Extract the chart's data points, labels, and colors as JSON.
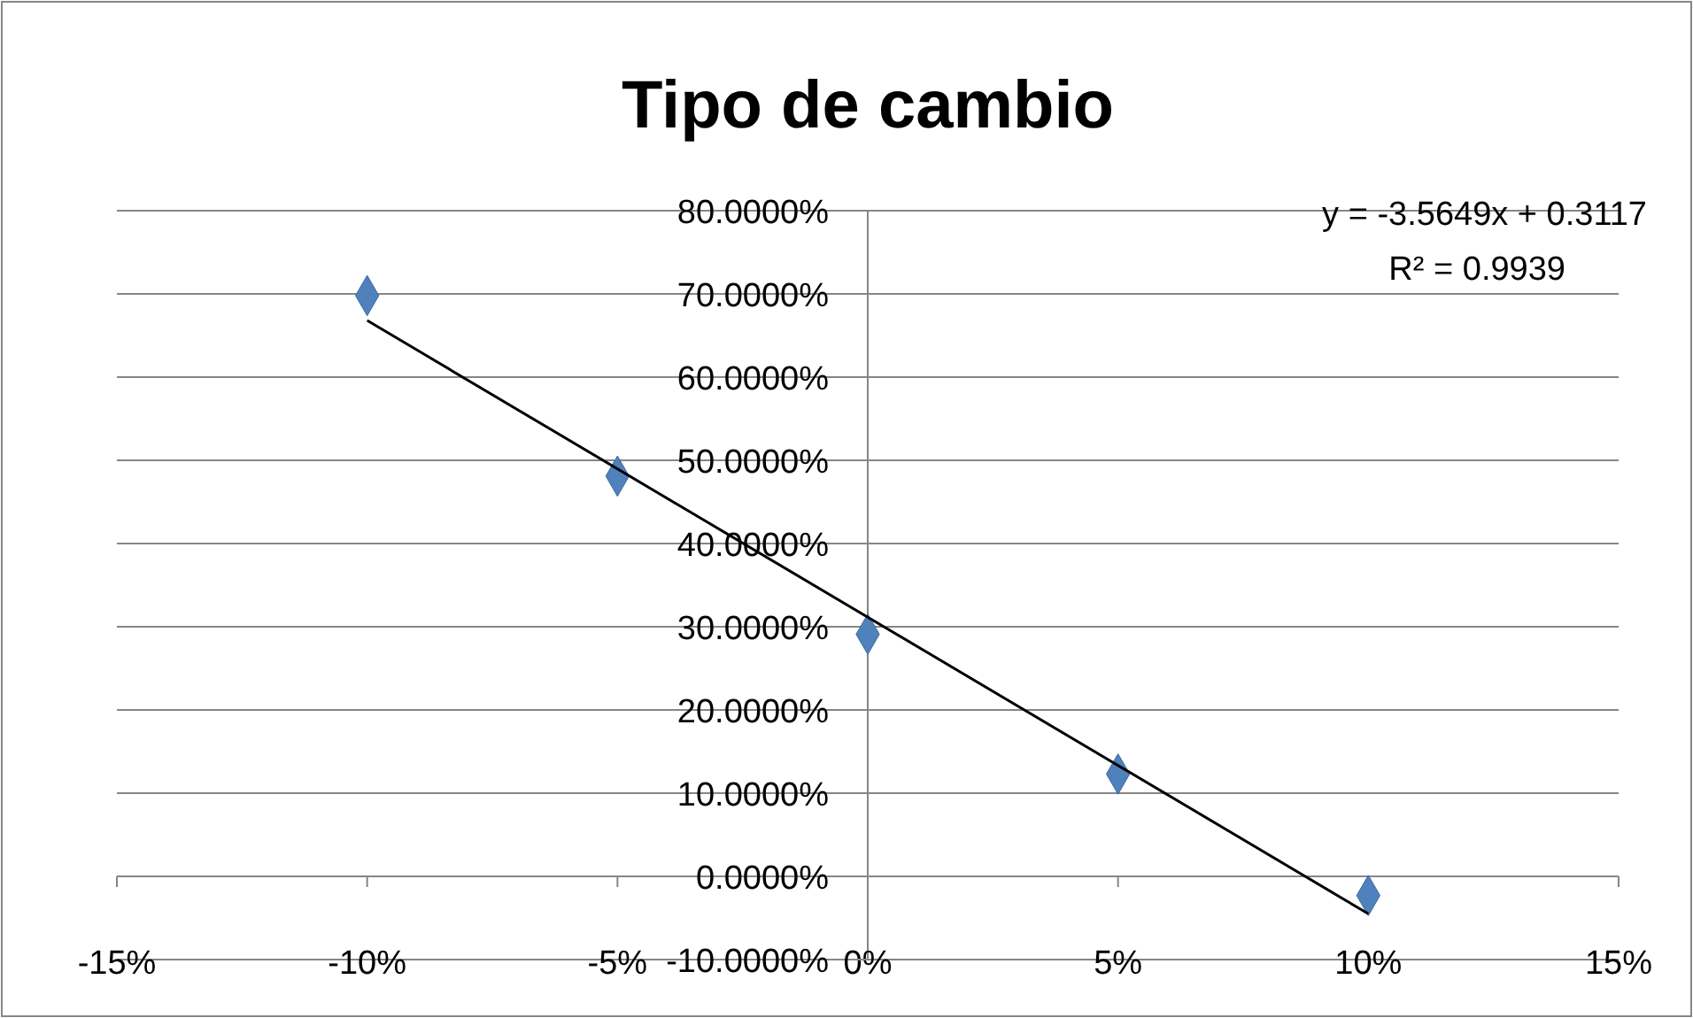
{
  "chart_data": {
    "type": "scatter",
    "title": "Tipo de cambio",
    "marker": "diamond",
    "grid": "y",
    "xlim": [
      -15,
      15
    ],
    "xticks": [
      {
        "value": -15,
        "label": "-15%"
      },
      {
        "value": -10,
        "label": "-10%"
      },
      {
        "value": -5,
        "label": "-5%"
      },
      {
        "value": 0,
        "label": "0%"
      },
      {
        "value": 5,
        "label": "5%"
      },
      {
        "value": 10,
        "label": "10%"
      },
      {
        "value": 15,
        "label": "15%"
      }
    ],
    "ylim": [
      -10,
      80
    ],
    "yticks": [
      {
        "value": -10,
        "label": "-10.0000%"
      },
      {
        "value": 0,
        "label": "0.0000%"
      },
      {
        "value": 10,
        "label": "10.0000%"
      },
      {
        "value": 20,
        "label": "20.0000%"
      },
      {
        "value": 30,
        "label": "30.0000%"
      },
      {
        "value": 40,
        "label": "40.0000%"
      },
      {
        "value": 50,
        "label": "50.0000%"
      },
      {
        "value": 60,
        "label": "60.0000%"
      },
      {
        "value": 70,
        "label": "70.0000%"
      },
      {
        "value": 80,
        "label": "80.0000%"
      }
    ],
    "annotations": [
      "y = -3.5649x + 0.3117",
      "R² = 0.9939"
    ],
    "series": [
      {
        "color": "#4f81bd",
        "x": [
          -10,
          -5,
          0,
          5,
          10
        ],
        "values": [
          69.8,
          48.1,
          29.1,
          12.3,
          -2.3
        ]
      },
      {
        "type": "line",
        "color": "#000000",
        "marker": "none",
        "x": [
          -10,
          10
        ],
        "values": [
          66.8,
          -4.5
        ]
      }
    ]
  }
}
